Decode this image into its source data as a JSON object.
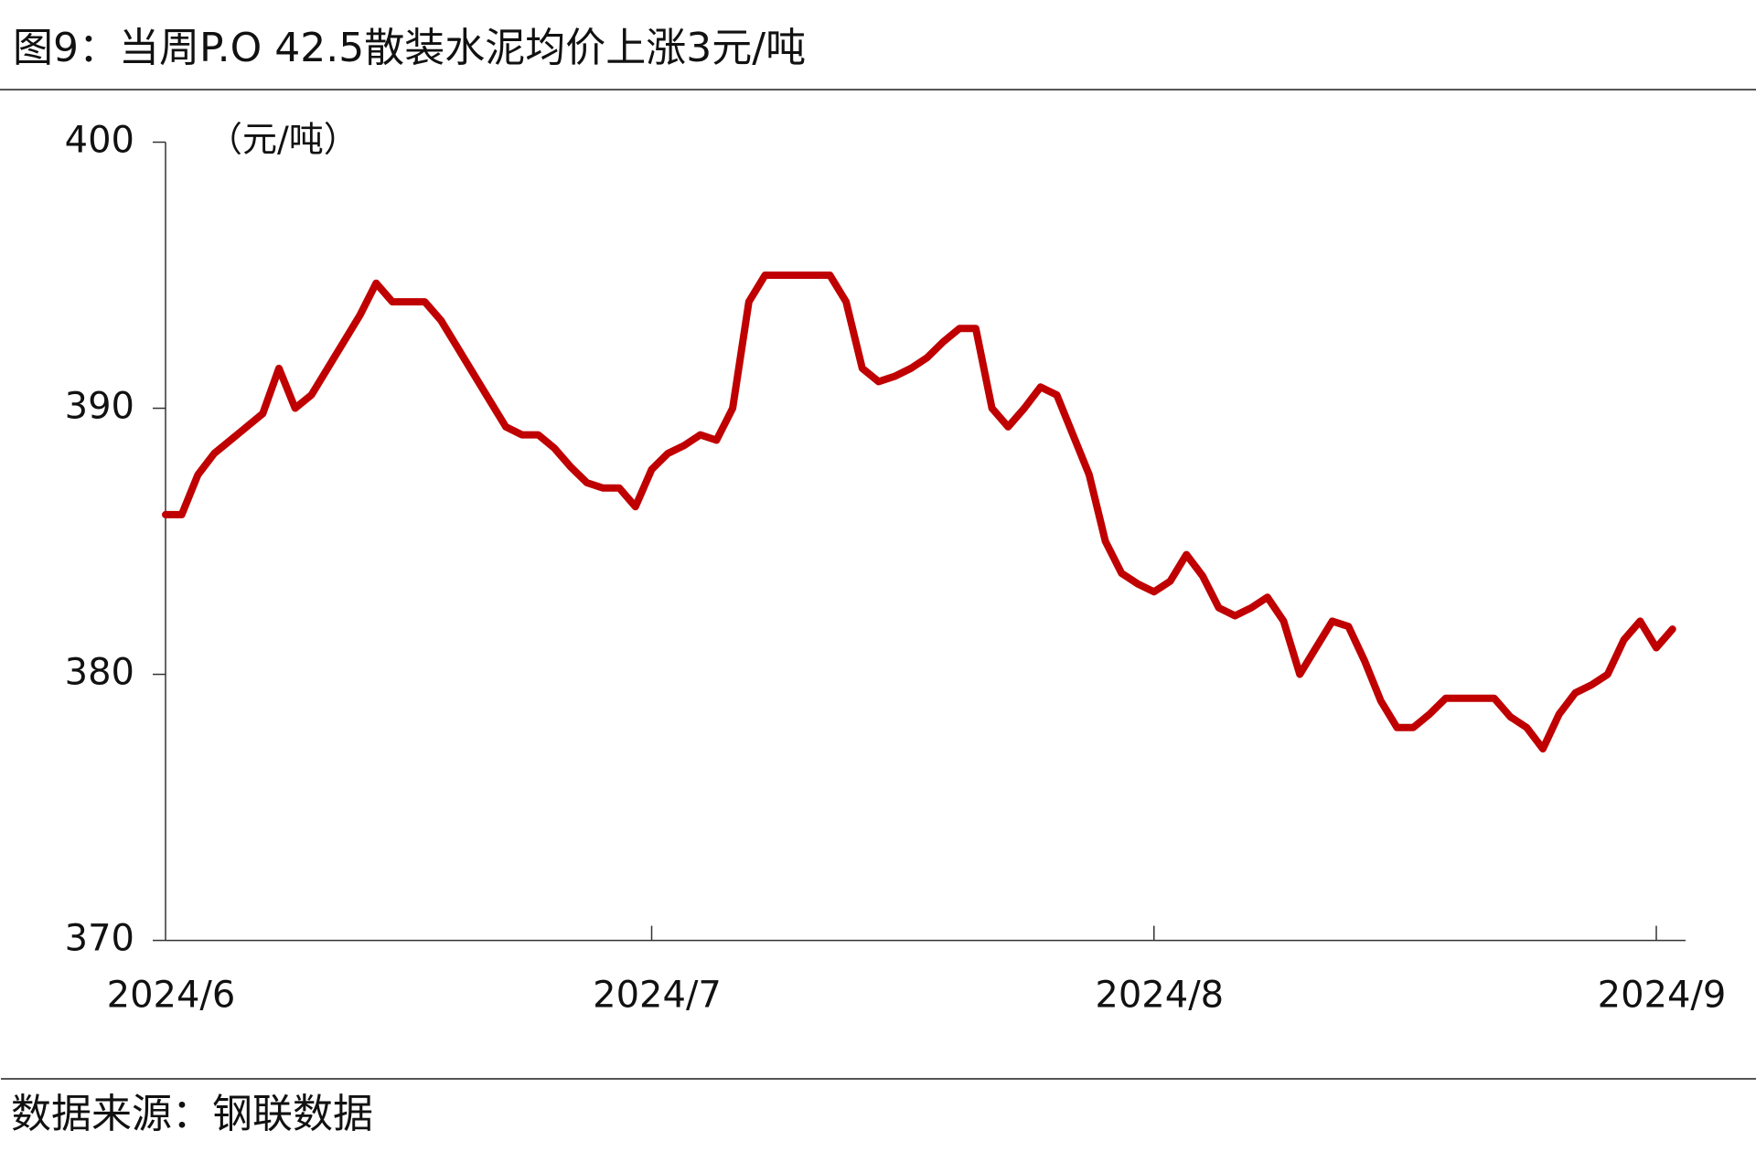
{
  "chart_data": {
    "type": "line",
    "title": "图9：当周P.O 42.5散装水泥均价上涨3元/吨",
    "y_label": "（元/吨）",
    "source": "数据来源：钢联数据",
    "color": "#c00000",
    "categories": [
      "2024/6",
      null,
      null,
      null,
      null,
      null,
      null,
      null,
      null,
      null,
      null,
      null,
      null,
      null,
      null,
      null,
      null,
      null,
      null,
      null,
      null,
      null,
      null,
      null,
      null,
      null,
      null,
      null,
      null,
      null,
      "2024/7",
      null,
      null,
      null,
      null,
      null,
      null,
      null,
      null,
      null,
      null,
      null,
      null,
      null,
      null,
      null,
      null,
      null,
      null,
      null,
      null,
      null,
      null,
      null,
      null,
      null,
      null,
      null,
      null,
      null,
      null,
      "2024/8",
      null,
      null,
      null,
      null,
      null,
      null,
      null,
      null,
      null,
      null,
      null,
      null,
      null,
      null,
      null,
      null,
      null,
      null,
      null,
      null,
      null,
      null,
      null,
      null,
      null,
      null,
      null,
      null,
      null,
      null,
      "2024/9",
      null
    ],
    "values": [
      386,
      386,
      387.5,
      388.3,
      388.8,
      389.3,
      389.8,
      391.5,
      390,
      390.5,
      391.5,
      392.5,
      393.5,
      394.7,
      394,
      394,
      394,
      393.3,
      392.3,
      391.3,
      390.3,
      389.3,
      389,
      389,
      388.5,
      387.8,
      387.2,
      387,
      387,
      386.3,
      387.7,
      388.3,
      388.6,
      389,
      388.8,
      390,
      394,
      395,
      395,
      395,
      395,
      395,
      394,
      391.5,
      391,
      391.2,
      391.5,
      391.9,
      392.5,
      393,
      393,
      390,
      389.3,
      390,
      390.8,
      390.5,
      389,
      387.5,
      385,
      383.8,
      383.4,
      383.1,
      383.5,
      384.5,
      383.7,
      382.5,
      382.2,
      382.5,
      382.9,
      382,
      380,
      381,
      382,
      381.8,
      380.5,
      379,
      378,
      378,
      378.5,
      379.1,
      379.1,
      379.1,
      379.1,
      378.4,
      378,
      377.2,
      378.5,
      379.3,
      379.6,
      380,
      381.3,
      382,
      381,
      381.7
    ],
    "ylim": [
      370,
      400
    ],
    "yticks": [
      370,
      380,
      390,
      400
    ],
    "grid": false
  }
}
